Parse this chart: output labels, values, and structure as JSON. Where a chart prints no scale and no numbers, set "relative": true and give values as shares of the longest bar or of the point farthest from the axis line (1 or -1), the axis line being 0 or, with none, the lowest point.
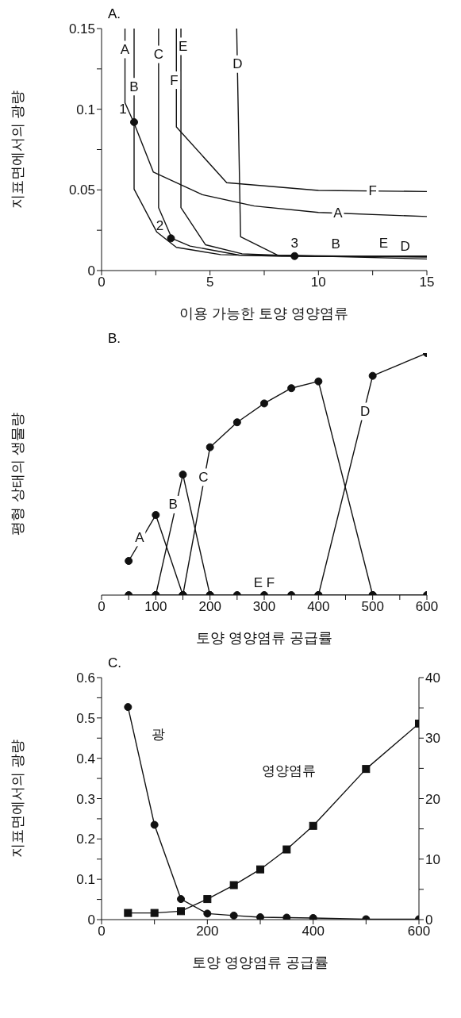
{
  "chart_data": [
    {
      "type": "line",
      "title": "A.",
      "xlabel": "이용 가능한 토양 영양염류",
      "ylabel": "지표면에서의 광량",
      "xlim": [
        0,
        15
      ],
      "ylim": [
        0,
        0.15
      ],
      "xticks": [
        0,
        {
          "value": 2.5,
          "label": null
        },
        5,
        {
          "value": 7.5,
          "label": null
        },
        10,
        {
          "value": 12.5,
          "label": null
        },
        15
      ],
      "yticks": [
        0,
        {
          "value": 0.025,
          "label": null
        },
        0.05,
        {
          "value": 0.075,
          "label": null
        },
        0.1,
        {
          "value": 0.125,
          "label": null
        },
        0.15
      ],
      "marker": "none",
      "line_style": "solid",
      "series": [
        {
          "color": "#111111",
          "x": [
            1.08,
            1.08,
            1.48,
            2.39,
            4.65,
            7.04,
            10,
            15
          ],
          "values": [
            0.15,
            0.104,
            0.092,
            0.061,
            0.047,
            0.04,
            0.036,
            0.0335
          ]
        },
        {
          "color": "#111111",
          "x": [
            1.5,
            1.5,
            2.54,
            3.45,
            5.49,
            8.3,
            15
          ],
          "values": [
            0.15,
            0.0505,
            0.024,
            0.0144,
            0.0099,
            0.0088,
            0.0085
          ]
        },
        {
          "color": "#111111",
          "x": [
            2.63,
            2.63,
            3.24,
            4.08,
            6.34,
            15
          ],
          "values": [
            0.15,
            0.039,
            0.02,
            0.0152,
            0.0096,
            0.0085
          ]
        },
        {
          "color": "#111111",
          "x": [
            3.66,
            3.66,
            4.79,
            6.48,
            9.7,
            15
          ],
          "values": [
            0.15,
            0.039,
            0.016,
            0.0104,
            0.0088,
            0.009
          ]
        },
        {
          "color": "#111111",
          "x": [
            3.45,
            3.45,
            5.77,
            10,
            15
          ],
          "values": [
            0.15,
            0.089,
            0.0545,
            0.0497,
            0.049
          ]
        },
        {
          "color": "#111111",
          "x": [
            6.23,
            6.41,
            8.1,
            15
          ],
          "values": [
            0.15,
            0.021,
            0.0096,
            0.0072
          ]
        },
        {
          "type": "scatter",
          "marker": "circle",
          "color": "#111111",
          "x": [
            1.5,
            3.2,
            8.9
          ],
          "values": [
            0.092,
            0.02,
            0.009
          ]
        }
      ],
      "annotations": [
        {
          "text": "A",
          "x": 1.08,
          "y": 0.137
        },
        {
          "text": "B",
          "x": 1.5,
          "y": 0.114
        },
        {
          "text": "C",
          "x": 2.63,
          "y": 0.134
        },
        {
          "text": "E",
          "x": 3.76,
          "y": 0.139
        },
        {
          "text": "F",
          "x": 3.35,
          "y": 0.118
        },
        {
          "text": "D",
          "x": 6.27,
          "y": 0.128
        },
        {
          "text": "F",
          "x": 12.5,
          "y": 0.0492
        },
        {
          "text": "A",
          "x": 10.9,
          "y": 0.0355
        },
        {
          "text": "B",
          "x": 10.8,
          "y": 0.0087
        },
        {
          "text": "E",
          "x": 13,
          "y": 0.0089
        },
        {
          "text": "D",
          "x": 14,
          "y": 0.0073
        },
        {
          "text": "1",
          "x": 1.5,
          "y": 0.092
        },
        {
          "text": "2",
          "x": 3.2,
          "y": 0.02
        },
        {
          "text": "3",
          "x": 8.9,
          "y": 0.009
        }
      ]
    },
    {
      "type": "line",
      "title": "B.",
      "xlabel": "토양 영양염류 공급률",
      "ylabel": "평형 상태의 생물량",
      "xlim": [
        0,
        600
      ],
      "relative": true,
      "xticks": [
        0,
        {
          "value": 50,
          "label": null
        },
        100,
        {
          "value": 150,
          "label": null
        },
        200,
        {
          "value": 250,
          "label": null
        },
        300,
        {
          "value": 350,
          "label": null
        },
        400,
        {
          "value": 450,
          "label": null
        },
        500,
        {
          "value": 550,
          "label": null
        },
        600
      ],
      "marker": "circle",
      "line_style": "solid",
      "series": [
        {
          "color": "#111111",
          "x": [
            50,
            100,
            150
          ],
          "values": [
            0.141,
            0.331,
            0
          ]
        },
        {
          "color": "#111111",
          "x": [
            100,
            150,
            200
          ],
          "values": [
            0,
            0.498,
            0
          ]
        },
        {
          "color": "#111111",
          "x": [
            150,
            200,
            250,
            300,
            350,
            400,
            500
          ],
          "values": [
            0,
            0.611,
            0.714,
            0.792,
            0.855,
            0.883,
            0
          ]
        },
        {
          "color": "#111111",
          "x": [
            400,
            500,
            600
          ],
          "values": [
            0,
            0.906,
            1
          ]
        },
        {
          "color": "#111111",
          "x": [
            50,
            100,
            150,
            200,
            250,
            300,
            350,
            400,
            500,
            600
          ],
          "values": [
            0,
            0,
            0,
            0,
            0,
            0,
            0,
            0,
            0,
            0
          ]
        }
      ],
      "annotations": [
        {
          "text": "A",
          "x": 70,
          "y": 0.238
        },
        {
          "text": "B",
          "x": 132,
          "y": 0.374
        },
        {
          "text": "C",
          "x": 188,
          "y": 0.487
        },
        {
          "text": "D",
          "x": 486,
          "y": 0.759
        },
        {
          "text": "E F",
          "x": 300,
          "y": 0
        }
      ]
    },
    {
      "type": "line",
      "title": "C.",
      "xlabel": "토양 영양염류 공급률",
      "ylabel": "지표면에서의 광량",
      "xlim": [
        0,
        600
      ],
      "ylim": [
        0,
        0.6
      ],
      "y2lim": [
        0,
        40
      ],
      "xticks": [
        0,
        {
          "value": 100,
          "label": null
        },
        200,
        {
          "value": 300,
          "label": null
        },
        400,
        {
          "value": 500,
          "label": null
        },
        600
      ],
      "yticks": [
        0,
        {
          "value": 0.05,
          "label": null
        },
        0.1,
        {
          "value": 0.15,
          "label": null
        },
        0.2,
        {
          "value": 0.25,
          "label": null
        },
        0.3,
        {
          "value": 0.35,
          "label": null
        },
        0.4,
        {
          "value": 0.45,
          "label": null
        },
        0.5,
        {
          "value": 0.55,
          "label": null
        },
        0.6
      ],
      "y2ticks": [
        0,
        {
          "value": 5,
          "label": null
        },
        10,
        {
          "value": 15,
          "label": null
        },
        20,
        {
          "value": 25,
          "label": null
        },
        30,
        {
          "value": 35,
          "label": null
        },
        40
      ],
      "line_style": "solid",
      "series": [
        {
          "name": "광",
          "marker": "circle",
          "color": "#111111",
          "x": [
            50,
            100,
            150,
            200,
            250,
            300,
            350,
            400,
            500,
            600
          ],
          "values": [
            0.527,
            0.235,
            0.051,
            0.015,
            0.01,
            0.006,
            0.005,
            0.004,
            0.001,
            0.001
          ]
        },
        {
          "name": "영양염류",
          "marker": "square",
          "axis": "y2",
          "color": "#111111",
          "x": [
            50,
            100,
            150,
            200,
            250,
            300,
            350,
            400,
            500,
            600
          ],
          "values": [
            1.1,
            1.1,
            1.4,
            3.4,
            5.7,
            8.3,
            11.6,
            15.5,
            24.9,
            32.4
          ]
        }
      ]
    }
  ]
}
